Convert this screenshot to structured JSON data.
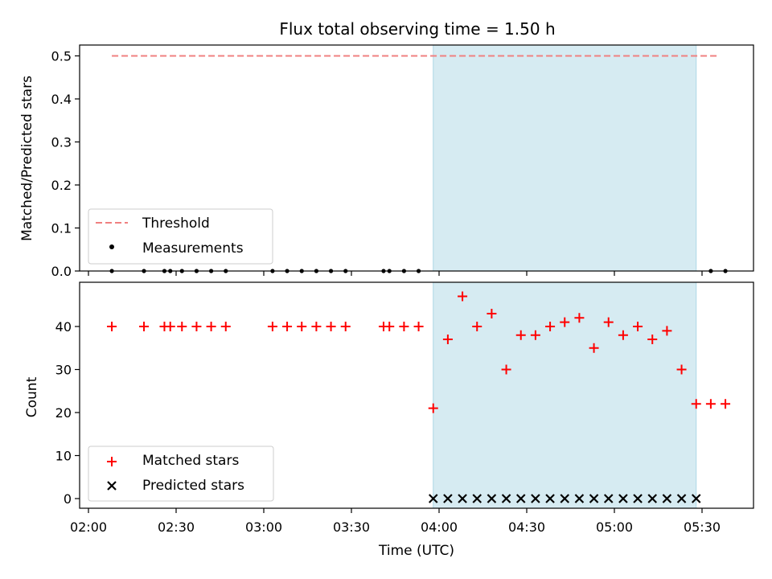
{
  "chart_data": [
    {
      "type": "scatter",
      "title": "Flux total observing time = 1.50 h",
      "xlabel": "",
      "ylabel": "Matched/Predicted stars",
      "ylim": [
        0,
        0.525
      ],
      "yticks": [
        "0.0",
        "0.1",
        "0.2",
        "0.3",
        "0.4",
        "0.5"
      ],
      "grid": false,
      "legend": {
        "placement": "lower-left",
        "entries": [
          {
            "label": "Threshold",
            "marker": "dashed-line",
            "color": "#f08080"
          },
          {
            "label": "Measurements",
            "marker": "dot",
            "color": "#000000"
          }
        ]
      },
      "threshold": {
        "value": 0.5,
        "x_start": "02:08",
        "x_end": "05:35",
        "color": "#f08080",
        "style": "dashed"
      },
      "shaded_interval": {
        "start": "03:58",
        "end": "05:28",
        "color": "#add8e6"
      },
      "series": [
        {
          "name": "Measurements",
          "color": "#000000",
          "points": [
            {
              "x": "02:08",
              "y": 0
            },
            {
              "x": "02:19",
              "y": 0
            },
            {
              "x": "02:26",
              "y": 0
            },
            {
              "x": "02:28",
              "y": 0
            },
            {
              "x": "02:32",
              "y": 0
            },
            {
              "x": "02:37",
              "y": 0
            },
            {
              "x": "02:42",
              "y": 0
            },
            {
              "x": "02:47",
              "y": 0
            },
            {
              "x": "03:03",
              "y": 0
            },
            {
              "x": "03:08",
              "y": 0
            },
            {
              "x": "03:13",
              "y": 0
            },
            {
              "x": "03:18",
              "y": 0
            },
            {
              "x": "03:23",
              "y": 0
            },
            {
              "x": "03:28",
              "y": 0
            },
            {
              "x": "03:41",
              "y": 0
            },
            {
              "x": "03:43",
              "y": 0
            },
            {
              "x": "03:48",
              "y": 0
            },
            {
              "x": "03:53",
              "y": 0
            },
            {
              "x": "05:33",
              "y": 0
            },
            {
              "x": "05:38",
              "y": 0
            }
          ]
        }
      ]
    },
    {
      "type": "scatter",
      "title": "",
      "xlabel": "Time (UTC)",
      "ylabel": "Count",
      "ylim": [
        -2.5,
        50
      ],
      "yticks": [
        "0",
        "10",
        "20",
        "30",
        "40"
      ],
      "xticks": [
        "02:00",
        "02:30",
        "03:00",
        "03:30",
        "04:00",
        "04:30",
        "05:00",
        "05:30"
      ],
      "grid": false,
      "legend": {
        "placement": "lower-left",
        "entries": [
          {
            "label": "Matched stars",
            "marker": "plus",
            "color": "#ff0000"
          },
          {
            "label": "Predicted stars",
            "marker": "x",
            "color": "#000000"
          }
        ]
      },
      "shaded_interval": {
        "start": "03:58",
        "end": "05:28",
        "color": "#add8e6"
      },
      "series": [
        {
          "name": "Matched stars",
          "marker": "plus",
          "color": "#ff0000",
          "points": [
            {
              "x": "02:08",
              "y": 40
            },
            {
              "x": "02:19",
              "y": 40
            },
            {
              "x": "02:26",
              "y": 40
            },
            {
              "x": "02:28",
              "y": 40
            },
            {
              "x": "02:32",
              "y": 40
            },
            {
              "x": "02:37",
              "y": 40
            },
            {
              "x": "02:42",
              "y": 40
            },
            {
              "x": "02:47",
              "y": 40
            },
            {
              "x": "03:03",
              "y": 40
            },
            {
              "x": "03:08",
              "y": 40
            },
            {
              "x": "03:13",
              "y": 40
            },
            {
              "x": "03:18",
              "y": 40
            },
            {
              "x": "03:23",
              "y": 40
            },
            {
              "x": "03:28",
              "y": 40
            },
            {
              "x": "03:41",
              "y": 40
            },
            {
              "x": "03:43",
              "y": 40
            },
            {
              "x": "03:48",
              "y": 40
            },
            {
              "x": "03:53",
              "y": 40
            },
            {
              "x": "03:58",
              "y": 21
            },
            {
              "x": "04:03",
              "y": 37
            },
            {
              "x": "04:08",
              "y": 47
            },
            {
              "x": "04:13",
              "y": 40
            },
            {
              "x": "04:18",
              "y": 43
            },
            {
              "x": "04:23",
              "y": 30
            },
            {
              "x": "04:28",
              "y": 38
            },
            {
              "x": "04:33",
              "y": 38
            },
            {
              "x": "04:38",
              "y": 40
            },
            {
              "x": "04:43",
              "y": 41
            },
            {
              "x": "04:48",
              "y": 42
            },
            {
              "x": "04:53",
              "y": 35
            },
            {
              "x": "04:58",
              "y": 41
            },
            {
              "x": "05:03",
              "y": 38
            },
            {
              "x": "05:08",
              "y": 40
            },
            {
              "x": "05:13",
              "y": 37
            },
            {
              "x": "05:18",
              "y": 39
            },
            {
              "x": "05:23",
              "y": 30
            },
            {
              "x": "05:28",
              "y": 22
            },
            {
              "x": "05:33",
              "y": 22
            },
            {
              "x": "05:38",
              "y": 22
            }
          ]
        },
        {
          "name": "Predicted stars",
          "marker": "x",
          "color": "#000000",
          "points": [
            {
              "x": "03:58",
              "y": 0
            },
            {
              "x": "04:03",
              "y": 0
            },
            {
              "x": "04:08",
              "y": 0
            },
            {
              "x": "04:13",
              "y": 0
            },
            {
              "x": "04:18",
              "y": 0
            },
            {
              "x": "04:23",
              "y": 0
            },
            {
              "x": "04:28",
              "y": 0
            },
            {
              "x": "04:33",
              "y": 0
            },
            {
              "x": "04:38",
              "y": 0
            },
            {
              "x": "04:43",
              "y": 0
            },
            {
              "x": "04:48",
              "y": 0
            },
            {
              "x": "04:53",
              "y": 0
            },
            {
              "x": "04:58",
              "y": 0
            },
            {
              "x": "05:03",
              "y": 0
            },
            {
              "x": "05:08",
              "y": 0
            },
            {
              "x": "05:13",
              "y": 0
            },
            {
              "x": "05:18",
              "y": 0
            },
            {
              "x": "05:23",
              "y": 0
            },
            {
              "x": "05:28",
              "y": 0
            }
          ]
        }
      ]
    }
  ]
}
